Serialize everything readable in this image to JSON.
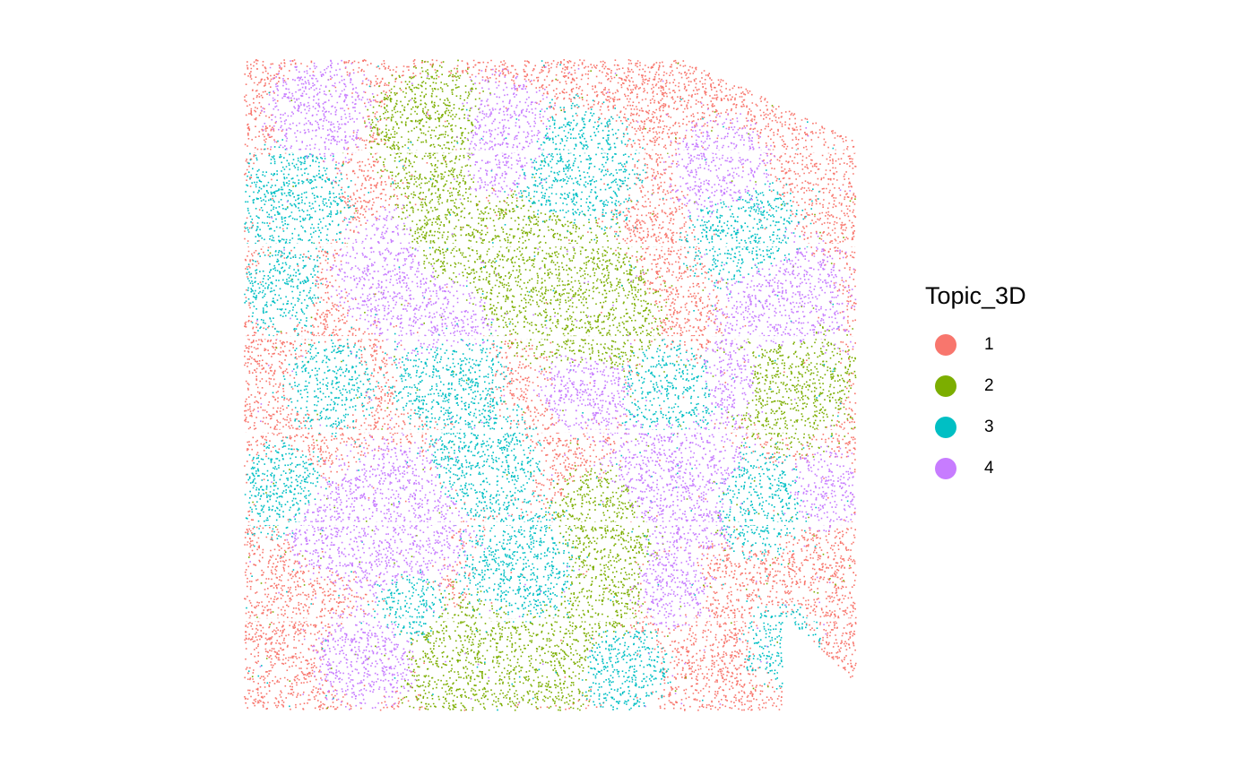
{
  "chart_data": {
    "type": "scatter",
    "title": "",
    "xlabel": "",
    "ylabel": "",
    "grid": false,
    "axes": false,
    "legend_placement": "right",
    "legend_title": "Topic_3D",
    "xlim": [
      0,
      100
    ],
    "ylim": [
      0,
      100
    ],
    "series": [
      {
        "name": "1",
        "color": "#F8766D"
      },
      {
        "name": "2",
        "color": "#7CAE00"
      },
      {
        "name": "3",
        "color": "#00BFC4"
      },
      {
        "name": "4",
        "color": "#C77CFF"
      }
    ],
    "spatial_domains": [
      {
        "topic": "2",
        "center": [
          31,
          11
        ],
        "radius": 10
      },
      {
        "topic": "2",
        "center": [
          33,
          27
        ],
        "radius": 9
      },
      {
        "topic": "2",
        "center": [
          43,
          31
        ],
        "radius": 10
      },
      {
        "topic": "2",
        "center": [
          51,
          34
        ],
        "radius": 12
      },
      {
        "topic": "2",
        "center": [
          58,
          39
        ],
        "radius": 10
      },
      {
        "topic": "2",
        "center": [
          89,
          49
        ],
        "radius": 11
      },
      {
        "topic": "2",
        "center": [
          59,
          72
        ],
        "radius": 9
      },
      {
        "topic": "2",
        "center": [
          58,
          82
        ],
        "radius": 7
      },
      {
        "topic": "2",
        "center": [
          37,
          93
        ],
        "radius": 11
      },
      {
        "topic": "2",
        "center": [
          49,
          92
        ],
        "radius": 9
      },
      {
        "topic": "4",
        "center": [
          12,
          8
        ],
        "radius": 8
      },
      {
        "topic": "4",
        "center": [
          42,
          12
        ],
        "radius": 9
      },
      {
        "topic": "4",
        "center": [
          78,
          17
        ],
        "radius": 8
      },
      {
        "topic": "4",
        "center": [
          24,
          32
        ],
        "radius": 9
      },
      {
        "topic": "4",
        "center": [
          32,
          40
        ],
        "radius": 9
      },
      {
        "topic": "4",
        "center": [
          88,
          38
        ],
        "radius": 11
      },
      {
        "topic": "4",
        "center": [
          80,
          49
        ],
        "radius": 6
      },
      {
        "topic": "4",
        "center": [
          56,
          51
        ],
        "radius": 7
      },
      {
        "topic": "4",
        "center": [
          71,
          64
        ],
        "radius": 12
      },
      {
        "topic": "4",
        "center": [
          95,
          66
        ],
        "radius": 6
      },
      {
        "topic": "4",
        "center": [
          24,
          71
        ],
        "radius": 12
      },
      {
        "topic": "4",
        "center": [
          14,
          72
        ],
        "radius": 7
      },
      {
        "topic": "4",
        "center": [
          20,
          92
        ],
        "radius": 8
      },
      {
        "topic": "4",
        "center": [
          70,
          81
        ],
        "radius": 6
      },
      {
        "topic": "3",
        "center": [
          8,
          22
        ],
        "radius": 9
      },
      {
        "topic": "3",
        "center": [
          54,
          17
        ],
        "radius": 10
      },
      {
        "topic": "3",
        "center": [
          82,
          27
        ],
        "radius": 9
      },
      {
        "topic": "3",
        "center": [
          33,
          48
        ],
        "radius": 9
      },
      {
        "topic": "3",
        "center": [
          14,
          50
        ],
        "radius": 7
      },
      {
        "topic": "3",
        "center": [
          70,
          52
        ],
        "radius": 8
      },
      {
        "topic": "3",
        "center": [
          6,
          66
        ],
        "radius": 7
      },
      {
        "topic": "3",
        "center": [
          39,
          62
        ],
        "radius": 9
      },
      {
        "topic": "3",
        "center": [
          46,
          78
        ],
        "radius": 10
      },
      {
        "topic": "3",
        "center": [
          84,
          68
        ],
        "radius": 8
      },
      {
        "topic": "3",
        "center": [
          62,
          94
        ],
        "radius": 7
      },
      {
        "topic": "3",
        "center": [
          88,
          90
        ],
        "radius": 6
      },
      {
        "topic": "3",
        "center": [
          6,
          36
        ],
        "radius": 6
      },
      {
        "topic": "3",
        "center": [
          27,
          84
        ],
        "radius": 6
      }
    ]
  }
}
